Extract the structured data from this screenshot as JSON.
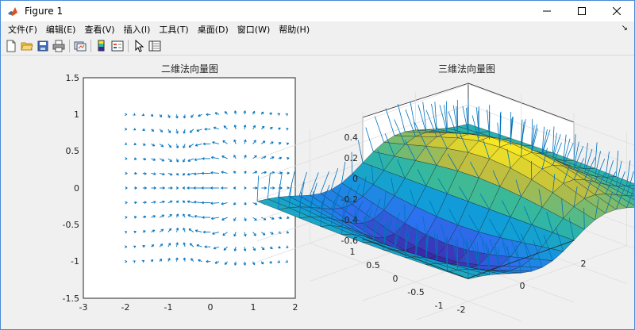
{
  "window": {
    "title": "Figure 1",
    "controls": [
      "minimize",
      "maximize",
      "close"
    ]
  },
  "menu": [
    "文件(F)",
    "编辑(E)",
    "查看(V)",
    "插入(I)",
    "工具(T)",
    "桌面(D)",
    "窗口(W)",
    "帮助(H)"
  ],
  "toolbar": [
    {
      "name": "new-figure",
      "icon": "new-file-icon"
    },
    {
      "name": "open-file",
      "icon": "folder-open-icon"
    },
    {
      "name": "save-figure",
      "icon": "save-icon"
    },
    {
      "name": "print-figure",
      "icon": "printer-icon"
    },
    {
      "name": "link-plot",
      "icon": "link-plot-icon"
    },
    {
      "name": "insert-colorbar",
      "icon": "colorbar-icon"
    },
    {
      "name": "insert-legend",
      "icon": "legend-icon"
    },
    {
      "name": "edit-plot",
      "icon": "pointer-icon"
    },
    {
      "name": "property-inspector",
      "icon": "property-inspector-icon"
    }
  ],
  "chart_data": [
    {
      "type": "quiver",
      "title": "二维法向量图",
      "xlim": [
        -3,
        2
      ],
      "ylim": [
        -1.5,
        1.5
      ],
      "xticks": [
        "-3",
        "-2",
        "-1",
        "0",
        "1",
        "2"
      ],
      "yticks": [
        "1.5",
        "1",
        "0.5",
        "0",
        "-0.5",
        "-1",
        "-1.5"
      ],
      "grid": false,
      "color": "#0072bd",
      "field": "normals of z = x·exp(-x²-y²) (2-D projection)",
      "x_range": [
        -2,
        1.8
      ],
      "x_step": 0.2,
      "y_range": [
        -1,
        1
      ],
      "y_step": 0.2
    },
    {
      "type": "surface-3d",
      "title": "三维法向量图",
      "xticks": [
        "-2",
        "0",
        "2"
      ],
      "yticks": [
        "-1",
        "-0.5",
        "0",
        "0.5",
        "1"
      ],
      "zticks": [
        "0.4",
        "0.2",
        "0",
        "-0.2",
        "-0.4",
        "-0.6"
      ],
      "zlim": [
        -0.6,
        0.5
      ],
      "grid": true,
      "colormap": "parula",
      "normals_color": "#0072bd",
      "function": "z = x·exp(-x²-y²)"
    }
  ]
}
